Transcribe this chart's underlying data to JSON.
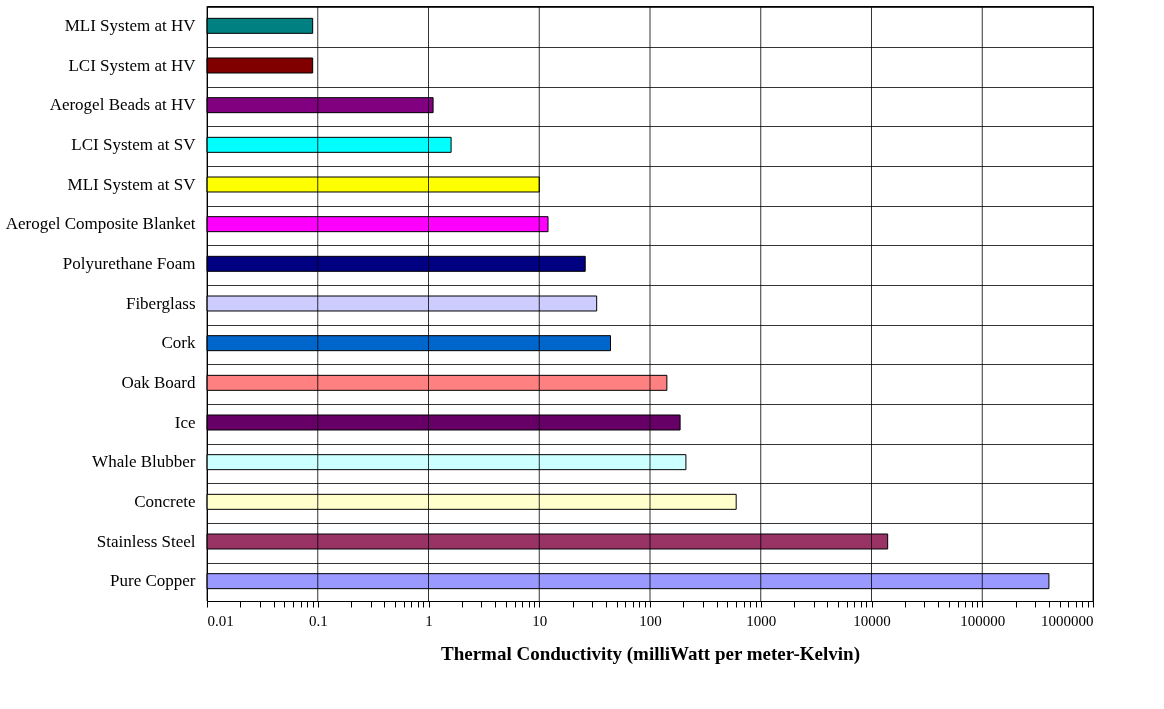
{
  "chart_data": {
    "type": "bar",
    "orientation": "horizontal",
    "log": "x",
    "grid": true,
    "xlabel": "Thermal Conductivity (milliWatt per meter-Kelvin)",
    "categories": [
      "MLI System at HV",
      "LCI System at HV",
      "Aerogel Beads at HV",
      "LCI System at SV",
      "MLI System at SV",
      "Aerogel Composite Blanket",
      "Polyurethane Foam",
      "Fiberglass",
      "Cork",
      "Oak Board",
      "Ice",
      "Whale Blubber",
      "Concrete",
      "Stainless Steel",
      "Pure Copper"
    ],
    "values": [
      0.09,
      0.09,
      1.1,
      1.6,
      10,
      12,
      26,
      33,
      44,
      142,
      187,
      211,
      600,
      14000,
      400000
    ],
    "colors": [
      "#008080",
      "#800000",
      "#800080",
      "#00ffff",
      "#ffff00",
      "#ff00ff",
      "#000080",
      "#ccccff",
      "#0066cc",
      "#ff8080",
      "#660066",
      "#ccffff",
      "#ffffcc",
      "#993366",
      "#9999ff"
    ],
    "xlim": [
      0.01,
      1000000
    ],
    "xticks": [
      0.01,
      0.1,
      1,
      10,
      100,
      1000,
      10000,
      100000,
      1000000,
      {
        "value": 0.02,
        "label": null
      },
      {
        "value": 0.03,
        "label": null
      },
      {
        "value": 0.04,
        "label": null
      },
      {
        "value": 0.05,
        "label": null
      },
      {
        "value": 0.06,
        "label": null
      },
      {
        "value": 0.07,
        "label": null
      },
      {
        "value": 0.08,
        "label": null
      },
      {
        "value": 0.09,
        "label": null
      },
      {
        "value": 0.2,
        "label": null
      },
      {
        "value": 0.3,
        "label": null
      },
      {
        "value": 0.4,
        "label": null
      },
      {
        "value": 0.5,
        "label": null
      },
      {
        "value": 0.6,
        "label": null
      },
      {
        "value": 0.7,
        "label": null
      },
      {
        "value": 0.8,
        "label": null
      },
      {
        "value": 0.9,
        "label": null
      },
      {
        "value": 2,
        "label": null
      },
      {
        "value": 3,
        "label": null
      },
      {
        "value": 4,
        "label": null
      },
      {
        "value": 5,
        "label": null
      },
      {
        "value": 6,
        "label": null
      },
      {
        "value": 7,
        "label": null
      },
      {
        "value": 8,
        "label": null
      },
      {
        "value": 9,
        "label": null
      },
      {
        "value": 20,
        "label": null
      },
      {
        "value": 30,
        "label": null
      },
      {
        "value": 40,
        "label": null
      },
      {
        "value": 50,
        "label": null
      },
      {
        "value": 60,
        "label": null
      },
      {
        "value": 70,
        "label": null
      },
      {
        "value": 80,
        "label": null
      },
      {
        "value": 90,
        "label": null
      },
      {
        "value": 200,
        "label": null
      },
      {
        "value": 300,
        "label": null
      },
      {
        "value": 400,
        "label": null
      },
      {
        "value": 500,
        "label": null
      },
      {
        "value": 600,
        "label": null
      },
      {
        "value": 700,
        "label": null
      },
      {
        "value": 800,
        "label": null
      },
      {
        "value": 900,
        "label": null
      },
      {
        "value": 2000,
        "label": null
      },
      {
        "value": 3000,
        "label": null
      },
      {
        "value": 4000,
        "label": null
      },
      {
        "value": 5000,
        "label": null
      },
      {
        "value": 6000,
        "label": null
      },
      {
        "value": 7000,
        "label": null
      },
      {
        "value": 8000,
        "label": null
      },
      {
        "value": 9000,
        "label": null
      },
      {
        "value": 20000,
        "label": null
      },
      {
        "value": 30000,
        "label": null
      },
      {
        "value": 40000,
        "label": null
      },
      {
        "value": 50000,
        "label": null
      },
      {
        "value": 60000,
        "label": null
      },
      {
        "value": 70000,
        "label": null
      },
      {
        "value": 80000,
        "label": null
      },
      {
        "value": 90000,
        "label": null
      },
      {
        "value": 200000,
        "label": null
      },
      {
        "value": 300000,
        "label": null
      },
      {
        "value": 400000,
        "label": null
      },
      {
        "value": 500000,
        "label": null
      },
      {
        "value": 600000,
        "label": null
      },
      {
        "value": 700000,
        "label": null
      },
      {
        "value": 800000,
        "label": null
      },
      {
        "value": 900000,
        "label": null
      }
    ]
  }
}
